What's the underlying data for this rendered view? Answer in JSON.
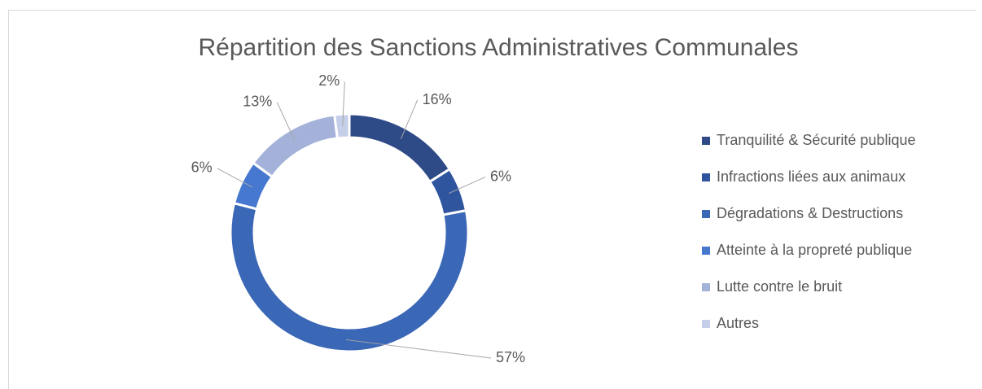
{
  "chart_data": {
    "type": "donut",
    "title": "Répartition des Sanctions Administratives Communales",
    "categories": [
      "Tranquilité & Sécurité publique",
      "Infractions liées aux animaux",
      "Dégradations & Destructions",
      "Atteinte à la propreté publique",
      "Lutte contre le bruit",
      "Autres"
    ],
    "values": [
      16,
      6,
      57,
      6,
      13,
      2
    ],
    "value_labels": [
      "16%",
      "6%",
      "57%",
      "6%",
      "13%",
      "2%"
    ],
    "colors": [
      "#2e4a87",
      "#30559f",
      "#3b67b7",
      "#4778d0",
      "#a4b2da",
      "#c6cfea"
    ],
    "legend": "right"
  }
}
